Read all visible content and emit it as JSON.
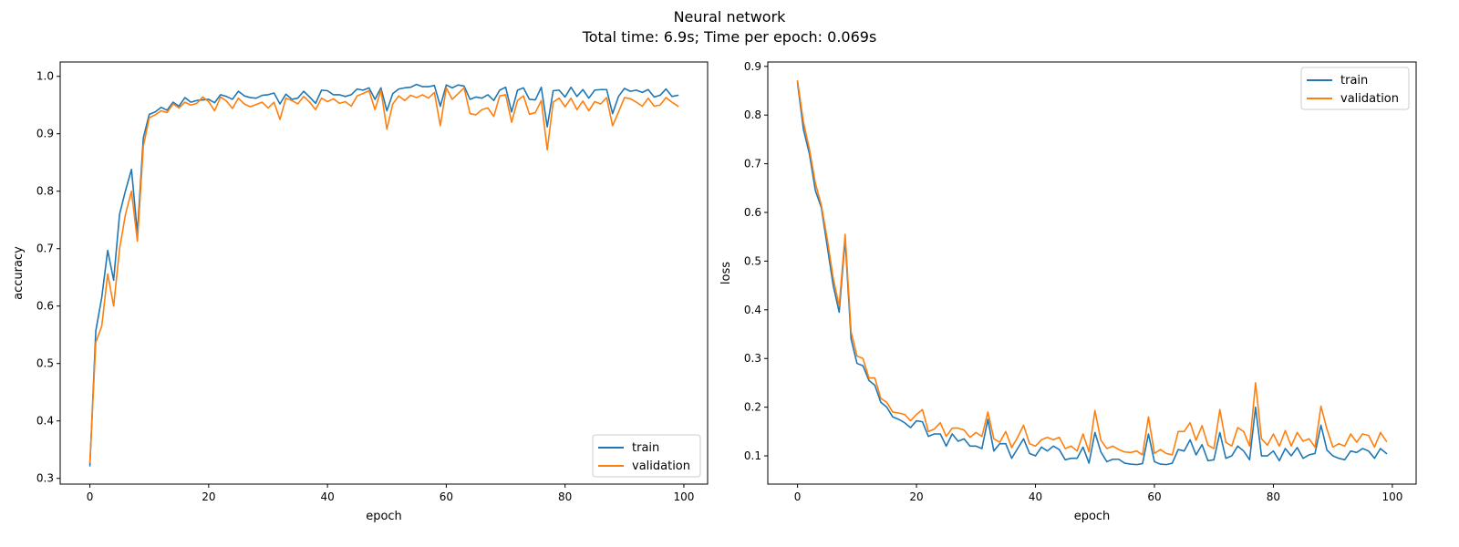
{
  "figure": {
    "title": "Neural network",
    "subtitle": "Total time: 6.9s; Time per epoch: 0.069s"
  },
  "chart_data": [
    {
      "type": "line",
      "xlabel": "epoch",
      "ylabel": "accuracy",
      "xlim": [
        -5,
        104
      ],
      "ylim": [
        0.29,
        1.025
      ],
      "xticks": [
        0,
        20,
        40,
        60,
        80,
        100
      ],
      "yticks": [
        0.3,
        0.4,
        0.5,
        0.6,
        0.7,
        0.8,
        0.9,
        1.0
      ],
      "legend_position": "lower-right",
      "grid": false,
      "series": [
        {
          "name": "train",
          "color": "#1f77b4",
          "values": [
            0.322,
            0.557,
            0.615,
            0.697,
            0.645,
            0.76,
            0.801,
            0.838,
            0.727,
            0.893,
            0.934,
            0.938,
            0.946,
            0.941,
            0.955,
            0.948,
            0.963,
            0.955,
            0.958,
            0.959,
            0.96,
            0.954,
            0.968,
            0.965,
            0.96,
            0.974,
            0.966,
            0.963,
            0.962,
            0.967,
            0.968,
            0.971,
            0.952,
            0.969,
            0.96,
            0.962,
            0.974,
            0.964,
            0.953,
            0.976,
            0.975,
            0.968,
            0.968,
            0.965,
            0.968,
            0.978,
            0.976,
            0.98,
            0.96,
            0.98,
            0.94,
            0.97,
            0.978,
            0.98,
            0.981,
            0.986,
            0.982,
            0.982,
            0.984,
            0.948,
            0.985,
            0.98,
            0.985,
            0.983,
            0.96,
            0.964,
            0.962,
            0.968,
            0.958,
            0.976,
            0.981,
            0.938,
            0.976,
            0.98,
            0.96,
            0.959,
            0.981,
            0.912,
            0.975,
            0.976,
            0.964,
            0.981,
            0.965,
            0.977,
            0.962,
            0.976,
            0.977,
            0.977,
            0.935,
            0.965,
            0.979,
            0.974,
            0.976,
            0.972,
            0.977,
            0.964,
            0.967,
            0.978,
            0.965,
            0.967
          ]
        },
        {
          "name": "validation",
          "color": "#ff7f0e",
          "values": [
            0.328,
            0.537,
            0.565,
            0.656,
            0.6,
            0.7,
            0.76,
            0.8,
            0.713,
            0.878,
            0.928,
            0.933,
            0.94,
            0.937,
            0.952,
            0.945,
            0.955,
            0.95,
            0.953,
            0.964,
            0.956,
            0.94,
            0.964,
            0.957,
            0.944,
            0.962,
            0.952,
            0.947,
            0.951,
            0.955,
            0.945,
            0.955,
            0.925,
            0.962,
            0.958,
            0.952,
            0.965,
            0.955,
            0.942,
            0.962,
            0.956,
            0.961,
            0.953,
            0.956,
            0.948,
            0.966,
            0.97,
            0.975,
            0.942,
            0.976,
            0.908,
            0.952,
            0.966,
            0.958,
            0.967,
            0.963,
            0.968,
            0.962,
            0.972,
            0.914,
            0.98,
            0.96,
            0.97,
            0.98,
            0.935,
            0.933,
            0.942,
            0.945,
            0.93,
            0.966,
            0.968,
            0.92,
            0.958,
            0.966,
            0.934,
            0.937,
            0.958,
            0.872,
            0.955,
            0.962,
            0.947,
            0.962,
            0.942,
            0.957,
            0.94,
            0.956,
            0.952,
            0.963,
            0.914,
            0.938,
            0.963,
            0.961,
            0.955,
            0.948,
            0.962,
            0.948,
            0.95,
            0.963,
            0.955,
            0.948
          ]
        }
      ]
    },
    {
      "type": "line",
      "xlabel": "epoch",
      "ylabel": "loss",
      "xlim": [
        -5,
        104
      ],
      "ylim": [
        0.042,
        0.909
      ],
      "xticks": [
        0,
        20,
        40,
        60,
        80,
        100
      ],
      "yticks": [
        0.1,
        0.2,
        0.3,
        0.4,
        0.5,
        0.6,
        0.7,
        0.8,
        0.9
      ],
      "legend_position": "upper-right",
      "grid": false,
      "series": [
        {
          "name": "train",
          "color": "#1f77b4",
          "values": [
            0.866,
            0.77,
            0.72,
            0.645,
            0.61,
            0.53,
            0.45,
            0.395,
            0.545,
            0.34,
            0.29,
            0.285,
            0.255,
            0.245,
            0.21,
            0.2,
            0.18,
            0.175,
            0.168,
            0.158,
            0.172,
            0.17,
            0.14,
            0.145,
            0.145,
            0.12,
            0.145,
            0.13,
            0.135,
            0.12,
            0.12,
            0.115,
            0.175,
            0.11,
            0.125,
            0.125,
            0.095,
            0.115,
            0.135,
            0.105,
            0.1,
            0.118,
            0.11,
            0.12,
            0.113,
            0.092,
            0.095,
            0.095,
            0.118,
            0.085,
            0.148,
            0.108,
            0.088,
            0.093,
            0.093,
            0.085,
            0.083,
            0.082,
            0.084,
            0.145,
            0.088,
            0.083,
            0.082,
            0.085,
            0.113,
            0.11,
            0.133,
            0.102,
            0.123,
            0.09,
            0.092,
            0.148,
            0.095,
            0.1,
            0.12,
            0.11,
            0.092,
            0.2,
            0.1,
            0.1,
            0.11,
            0.09,
            0.115,
            0.1,
            0.117,
            0.095,
            0.102,
            0.105,
            0.163,
            0.112,
            0.1,
            0.095,
            0.092,
            0.11,
            0.107,
            0.115,
            0.11,
            0.095,
            0.115,
            0.105
          ]
        },
        {
          "name": "validation",
          "color": "#ff7f0e",
          "values": [
            0.87,
            0.785,
            0.73,
            0.66,
            0.615,
            0.545,
            0.465,
            0.408,
            0.555,
            0.355,
            0.305,
            0.3,
            0.26,
            0.26,
            0.218,
            0.21,
            0.19,
            0.188,
            0.185,
            0.172,
            0.185,
            0.195,
            0.15,
            0.155,
            0.168,
            0.14,
            0.157,
            0.157,
            0.153,
            0.138,
            0.148,
            0.14,
            0.19,
            0.135,
            0.128,
            0.15,
            0.117,
            0.138,
            0.163,
            0.125,
            0.12,
            0.133,
            0.138,
            0.133,
            0.138,
            0.115,
            0.12,
            0.11,
            0.145,
            0.108,
            0.193,
            0.132,
            0.115,
            0.12,
            0.113,
            0.108,
            0.107,
            0.11,
            0.102,
            0.18,
            0.105,
            0.113,
            0.105,
            0.102,
            0.15,
            0.15,
            0.168,
            0.132,
            0.162,
            0.122,
            0.115,
            0.195,
            0.128,
            0.12,
            0.158,
            0.15,
            0.12,
            0.25,
            0.135,
            0.122,
            0.145,
            0.12,
            0.152,
            0.12,
            0.148,
            0.13,
            0.135,
            0.118,
            0.202,
            0.155,
            0.118,
            0.125,
            0.12,
            0.145,
            0.128,
            0.145,
            0.142,
            0.118,
            0.148,
            0.13
          ]
        }
      ]
    }
  ]
}
